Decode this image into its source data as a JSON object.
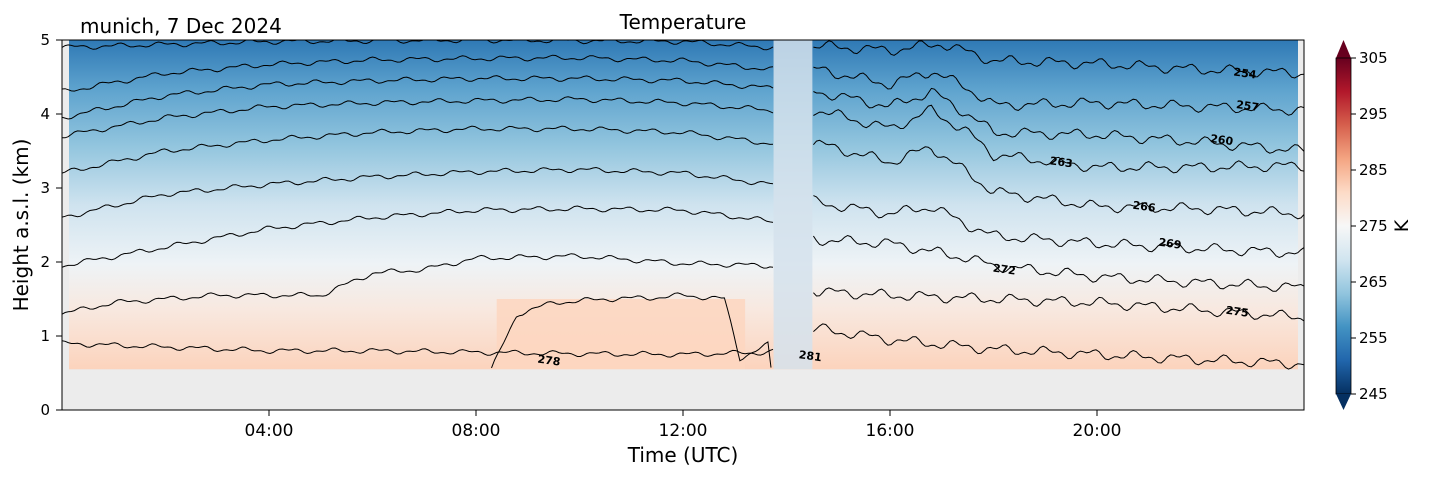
{
  "header": {
    "location_date": "munich, 7 Dec 2024",
    "title": "Temperature"
  },
  "chart_data": {
    "type": "heatmap",
    "title": "Temperature",
    "subtitle": "munich, 7 Dec 2024",
    "xlabel": "Time (UTC)",
    "ylabel": "Height a.s.l. (km)",
    "xlim_hours": [
      0,
      24
    ],
    "x_ticks": [
      {
        "hour": 4,
        "label": "04:00"
      },
      {
        "hour": 8,
        "label": "08:00"
      },
      {
        "hour": 12,
        "label": "12:00"
      },
      {
        "hour": 16,
        "label": "16:00"
      },
      {
        "hour": 20,
        "label": "20:00"
      }
    ],
    "ylim_km": [
      0,
      5
    ],
    "y_ticks": [
      0,
      1,
      2,
      3,
      4,
      5
    ],
    "no_data_below_km": 0.55,
    "data_gap_hours": [
      13.75,
      14.5
    ],
    "colorbar": {
      "label": "K",
      "range": [
        245,
        305
      ],
      "ticks": [
        245,
        255,
        265,
        275,
        285,
        295,
        305
      ],
      "colors": [
        "#053061",
        "#2166ac",
        "#4393c3",
        "#92c5de",
        "#d1e5f0",
        "#f7f7f7",
        "#fddbc7",
        "#f4a582",
        "#d6604d",
        "#b2182b",
        "#67001f"
      ],
      "extend": "both"
    },
    "contours": [
      {
        "level": 254,
        "label": "254",
        "label_hour": 22.85,
        "label_km": 4.5,
        "heights_km": [
          [
            0,
            4.9
          ],
          [
            4,
            4.98
          ],
          [
            8,
            5.0
          ],
          [
            12,
            4.98
          ],
          [
            13.7,
            4.9
          ],
          [
            14.6,
            4.92
          ],
          [
            16,
            4.86
          ],
          [
            17,
            4.95
          ],
          [
            18,
            4.72
          ],
          [
            20,
            4.68
          ],
          [
            22,
            4.6
          ],
          [
            24,
            4.55
          ]
        ]
      },
      {
        "level": 257,
        "label": "257",
        "label_hour": 22.9,
        "label_km": 4.06,
        "heights_km": [
          [
            0,
            4.3
          ],
          [
            2,
            4.55
          ],
          [
            4,
            4.67
          ],
          [
            6,
            4.73
          ],
          [
            8,
            4.75
          ],
          [
            10,
            4.76
          ],
          [
            12,
            4.72
          ],
          [
            13.7,
            4.6
          ],
          [
            14.6,
            4.6
          ],
          [
            16,
            4.4
          ],
          [
            16.8,
            4.58
          ],
          [
            17.5,
            4.35
          ],
          [
            18,
            4.12
          ],
          [
            20,
            4.15
          ],
          [
            22,
            4.1
          ],
          [
            24,
            4.05
          ]
        ]
      },
      {
        "level": 260,
        "label": "260",
        "label_hour": 22.4,
        "label_km": 3.6,
        "heights_km": [
          [
            0,
            3.95
          ],
          [
            2,
            4.25
          ],
          [
            4,
            4.4
          ],
          [
            6,
            4.45
          ],
          [
            8,
            4.48
          ],
          [
            10,
            4.48
          ],
          [
            12,
            4.45
          ],
          [
            13.7,
            4.35
          ],
          [
            14.6,
            4.3
          ],
          [
            16,
            4.1
          ],
          [
            16.8,
            4.3
          ],
          [
            17.5,
            4.0
          ],
          [
            18,
            3.75
          ],
          [
            20,
            3.72
          ],
          [
            22,
            3.62
          ],
          [
            24,
            3.5
          ]
        ]
      },
      {
        "level": 263,
        "label": "263",
        "label_hour": 19.3,
        "label_km": 3.3,
        "heights_km": [
          [
            0,
            3.7
          ],
          [
            2,
            3.95
          ],
          [
            4,
            4.1
          ],
          [
            6,
            4.15
          ],
          [
            8,
            4.18
          ],
          [
            10,
            4.2
          ],
          [
            12,
            4.15
          ],
          [
            13.7,
            4.05
          ],
          [
            14.6,
            4.05
          ],
          [
            16,
            3.8
          ],
          [
            16.8,
            4.05
          ],
          [
            17.5,
            3.75
          ],
          [
            18,
            3.45
          ],
          [
            20,
            3.28
          ],
          [
            22,
            3.28
          ],
          [
            24,
            3.3
          ]
        ]
      },
      {
        "level": 266,
        "label": "266",
        "label_hour": 20.9,
        "label_km": 2.7,
        "heights_km": [
          [
            0,
            3.2
          ],
          [
            2,
            3.5
          ],
          [
            4,
            3.65
          ],
          [
            6,
            3.75
          ],
          [
            8,
            3.8
          ],
          [
            10,
            3.8
          ],
          [
            12,
            3.75
          ],
          [
            13.7,
            3.6
          ],
          [
            14.6,
            3.6
          ],
          [
            16,
            3.35
          ],
          [
            16.8,
            3.55
          ],
          [
            17.5,
            3.2
          ],
          [
            18,
            2.95
          ],
          [
            20,
            2.75
          ],
          [
            22,
            2.72
          ],
          [
            24,
            2.65
          ]
        ]
      },
      {
        "level": 269,
        "label": "269",
        "label_hour": 21.4,
        "label_km": 2.2,
        "heights_km": [
          [
            0,
            2.6
          ],
          [
            2,
            2.92
          ],
          [
            4,
            3.05
          ],
          [
            6,
            3.15
          ],
          [
            8,
            3.22
          ],
          [
            10,
            3.25
          ],
          [
            12,
            3.2
          ],
          [
            13.7,
            3.05
          ],
          [
            14.6,
            2.8
          ],
          [
            16,
            2.65
          ],
          [
            16.8,
            2.75
          ],
          [
            17.5,
            2.5
          ],
          [
            18,
            2.35
          ],
          [
            20,
            2.25
          ],
          [
            22,
            2.18
          ],
          [
            24,
            2.12
          ]
        ]
      },
      {
        "level": 272,
        "label": "272",
        "label_hour": 18.2,
        "label_km": 1.85,
        "heights_km": [
          [
            0,
            1.95
          ],
          [
            2,
            2.2
          ],
          [
            4,
            2.45
          ],
          [
            6,
            2.6
          ],
          [
            8,
            2.7
          ],
          [
            10,
            2.72
          ],
          [
            12,
            2.7
          ],
          [
            13.7,
            2.55
          ],
          [
            14.6,
            2.3
          ],
          [
            16,
            2.25
          ],
          [
            17.5,
            2.05
          ],
          [
            18,
            1.95
          ],
          [
            20,
            1.8
          ],
          [
            22,
            1.72
          ],
          [
            24,
            1.65
          ]
        ]
      },
      {
        "level": 275,
        "label": "275",
        "label_hour": 22.7,
        "label_km": 1.28,
        "heights_km": [
          [
            0,
            1.3
          ],
          [
            1,
            1.45
          ],
          [
            3,
            1.55
          ],
          [
            5,
            1.55
          ],
          [
            6,
            1.85
          ],
          [
            7,
            1.9
          ],
          [
            8,
            2.05
          ],
          [
            10,
            2.08
          ],
          [
            12,
            1.98
          ],
          [
            13.7,
            1.95
          ],
          [
            14.6,
            1.6
          ],
          [
            16,
            1.55
          ],
          [
            18,
            1.5
          ],
          [
            20,
            1.45
          ],
          [
            22,
            1.35
          ],
          [
            24,
            1.25
          ]
        ]
      },
      {
        "level": 278,
        "label": "278",
        "label_hour": 9.4,
        "label_km": 0.62,
        "heights_km": [
          [
            0,
            0.9
          ],
          [
            2,
            0.85
          ],
          [
            4,
            0.8
          ],
          [
            6,
            0.8
          ],
          [
            8,
            0.78
          ],
          [
            10,
            0.76
          ],
          [
            12,
            0.75
          ],
          [
            13.7,
            0.78
          ],
          [
            14.6,
            1.1
          ],
          [
            16,
            0.95
          ],
          [
            18,
            0.82
          ],
          [
            20,
            0.75
          ],
          [
            22,
            0.68
          ],
          [
            24,
            0.62
          ]
        ]
      },
      {
        "level": 281,
        "label": "281",
        "label_hour": 14.45,
        "label_km": 0.68,
        "heights_km": [
          [
            8.3,
            0.55
          ],
          [
            8.8,
            1.3
          ],
          [
            9.5,
            1.45
          ],
          [
            10.5,
            1.5
          ],
          [
            11.5,
            1.52
          ],
          [
            12,
            1.55
          ],
          [
            12.8,
            1.5
          ],
          [
            13.1,
            0.7
          ],
          [
            13.7,
            0.9
          ]
        ]
      }
    ]
  }
}
